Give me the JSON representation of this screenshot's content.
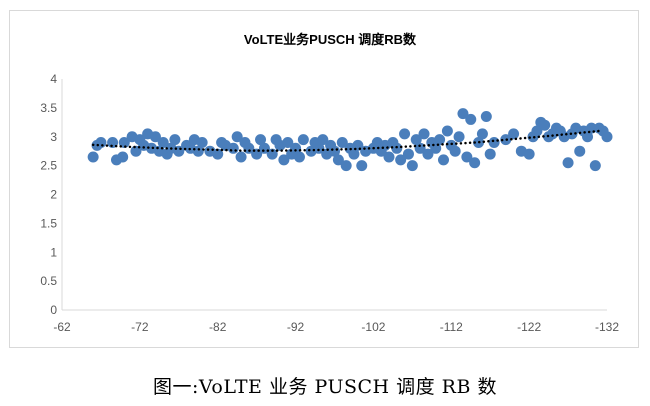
{
  "chart_data": {
    "type": "scatter",
    "title": "VoLTE业务PUSCH 调度RB数",
    "xlabel": "",
    "ylabel": "",
    "xlim": [
      -62,
      -132
    ],
    "ylim": [
      0,
      4
    ],
    "xticks": [
      "-62",
      "-72",
      "-82",
      "-92",
      "-102",
      "-112",
      "-122",
      "-132"
    ],
    "yticks": [
      "0",
      "0.5",
      "1",
      "1.5",
      "2",
      "2.5",
      "3",
      "3.5",
      "4"
    ],
    "grid": false,
    "legend": "none",
    "marker_color": "#4a7ebb",
    "trendline_color": "#000000",
    "trendline": {
      "style": "dotted",
      "x": [
        -66,
        -70,
        -75,
        -80,
        -85,
        -90,
        -95,
        -100,
        -105,
        -110,
        -115,
        -120,
        -125,
        -131
      ],
      "y": [
        2.86,
        2.83,
        2.8,
        2.78,
        2.76,
        2.76,
        2.77,
        2.79,
        2.82,
        2.86,
        2.9,
        2.96,
        3.02,
        3.1
      ]
    },
    "series": [
      {
        "points": [
          [
            -66,
            2.65
          ],
          [
            -66.5,
            2.85
          ],
          [
            -67,
            2.9
          ],
          [
            -68.5,
            2.9
          ],
          [
            -69,
            2.6
          ],
          [
            -69.8,
            2.65
          ],
          [
            -70,
            2.9
          ],
          [
            -71,
            3.0
          ],
          [
            -71.5,
            2.75
          ],
          [
            -72,
            2.95
          ],
          [
            -72.5,
            2.85
          ],
          [
            -73,
            3.05
          ],
          [
            -73.5,
            2.8
          ],
          [
            -74,
            3.0
          ],
          [
            -74.5,
            2.75
          ],
          [
            -75,
            2.9
          ],
          [
            -75.5,
            2.7
          ],
          [
            -76,
            2.8
          ],
          [
            -76.5,
            2.95
          ],
          [
            -77,
            2.75
          ],
          [
            -78,
            2.85
          ],
          [
            -78.5,
            2.8
          ],
          [
            -79,
            2.95
          ],
          [
            -79.5,
            2.75
          ],
          [
            -80,
            2.9
          ],
          [
            -81,
            2.75
          ],
          [
            -82,
            2.7
          ],
          [
            -82.5,
            2.9
          ],
          [
            -83,
            2.85
          ],
          [
            -84,
            2.8
          ],
          [
            -84.5,
            3.0
          ],
          [
            -85,
            2.65
          ],
          [
            -85.5,
            2.9
          ],
          [
            -86,
            2.8
          ],
          [
            -87,
            2.7
          ],
          [
            -87.5,
            2.95
          ],
          [
            -88,
            2.8
          ],
          [
            -89,
            2.7
          ],
          [
            -89.5,
            2.95
          ],
          [
            -90,
            2.85
          ],
          [
            -90.5,
            2.6
          ],
          [
            -91,
            2.9
          ],
          [
            -91.5,
            2.7
          ],
          [
            -92,
            2.8
          ],
          [
            -92.5,
            2.65
          ],
          [
            -93,
            2.95
          ],
          [
            -94,
            2.75
          ],
          [
            -94.5,
            2.9
          ],
          [
            -95,
            2.8
          ],
          [
            -95.5,
            2.95
          ],
          [
            -96,
            2.7
          ],
          [
            -96.5,
            2.85
          ],
          [
            -97,
            2.75
          ],
          [
            -97.5,
            2.6
          ],
          [
            -98,
            2.9
          ],
          [
            -98.5,
            2.5
          ],
          [
            -99,
            2.8
          ],
          [
            -99.5,
            2.7
          ],
          [
            -100,
            2.85
          ],
          [
            -100.5,
            2.5
          ],
          [
            -101,
            2.75
          ],
          [
            -102,
            2.8
          ],
          [
            -102.5,
            2.9
          ],
          [
            -103,
            2.75
          ],
          [
            -103.5,
            2.85
          ],
          [
            -104,
            2.65
          ],
          [
            -104.5,
            2.9
          ],
          [
            -105,
            2.8
          ],
          [
            -105.5,
            2.6
          ],
          [
            -106,
            3.05
          ],
          [
            -106.5,
            2.7
          ],
          [
            -107,
            2.5
          ],
          [
            -107.5,
            2.95
          ],
          [
            -108,
            2.8
          ],
          [
            -108.5,
            3.05
          ],
          [
            -109,
            2.7
          ],
          [
            -109.5,
            2.9
          ],
          [
            -110,
            2.8
          ],
          [
            -110.5,
            2.95
          ],
          [
            -111,
            2.6
          ],
          [
            -111.5,
            3.1
          ],
          [
            -112,
            2.85
          ],
          [
            -112.5,
            2.75
          ],
          [
            -113,
            3.0
          ],
          [
            -113.5,
            3.4
          ],
          [
            -114,
            2.65
          ],
          [
            -114.5,
            3.3
          ],
          [
            -115,
            2.55
          ],
          [
            -115.5,
            2.9
          ],
          [
            -116,
            3.05
          ],
          [
            -116.5,
            3.35
          ],
          [
            -117,
            2.7
          ],
          [
            -117.5,
            2.9
          ],
          [
            -119,
            2.95
          ],
          [
            -120,
            3.05
          ],
          [
            -121,
            2.75
          ],
          [
            -122,
            2.7
          ],
          [
            -122.5,
            3.0
          ],
          [
            -123,
            3.1
          ],
          [
            -123.5,
            3.25
          ],
          [
            -124,
            3.2
          ],
          [
            -124.5,
            3.0
          ],
          [
            -125,
            3.05
          ],
          [
            -125.5,
            3.15
          ],
          [
            -126,
            3.1
          ],
          [
            -126.5,
            3.0
          ],
          [
            -127,
            2.55
          ],
          [
            -127.5,
            3.05
          ],
          [
            -128,
            3.15
          ],
          [
            -128.5,
            2.75
          ],
          [
            -129,
            3.1
          ],
          [
            -129.5,
            3.0
          ],
          [
            -130,
            3.15
          ],
          [
            -130.5,
            2.5
          ],
          [
            -131,
            3.15
          ],
          [
            -131.5,
            3.1
          ],
          [
            -132,
            3.0
          ]
        ]
      }
    ]
  },
  "caption": "图一:VoLTE 业务 PUSCH 调度 RB 数"
}
